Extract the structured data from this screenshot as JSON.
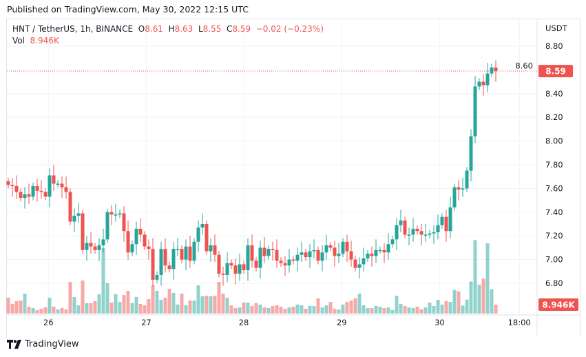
{
  "published": "Published on TradingView.com, May 30, 2022 12:15 UTC",
  "legend": {
    "symbol": "HNT / TetherUS, 1h, BINANCE",
    "open_label": "O",
    "open": "8.61",
    "high_label": "H",
    "high": "8.63",
    "low_label": "L",
    "low": "8.55",
    "close_label": "C",
    "close": "8.59",
    "change": "−0.02 (−0.23%)",
    "vol_label": "Vol",
    "vol": "8.946K"
  },
  "branding": "TradingView",
  "colors": {
    "up": "#26a69a",
    "down": "#ef5350",
    "grid": "#f0f3fa",
    "text": "#131722"
  },
  "chart_data": {
    "type": "candlestick",
    "currency_label": "USDT",
    "y_ticks": [
      "8.80",
      "8.60",
      "8.40",
      "8.20",
      "8.00",
      "7.80",
      "7.60",
      "7.40",
      "7.20",
      "7.00",
      "6.80"
    ],
    "y_tick_values": [
      8.8,
      8.6,
      8.4,
      8.2,
      8.0,
      7.8,
      7.6,
      7.4,
      7.2,
      7.0,
      6.8
    ],
    "x_ticks": [
      {
        "label": "26",
        "index": 9.7
      },
      {
        "label": "27",
        "index": 33.4
      },
      {
        "label": "28",
        "index": 57
      },
      {
        "label": "29",
        "index": 80.7
      },
      {
        "label": "30",
        "index": 104.4
      },
      {
        "label": "18:00",
        "index": 123.7
      }
    ],
    "last_price": "8.59",
    "last_price_value": 8.59,
    "last_volume": "8.946K",
    "first_open": 7.66,
    "close": [
      7.63,
      7.62,
      7.57,
      7.52,
      7.55,
      7.53,
      7.62,
      7.58,
      7.57,
      7.53,
      7.71,
      7.64,
      7.64,
      7.61,
      7.57,
      7.32,
      7.37,
      7.39,
      7.08,
      7.14,
      7.11,
      7.08,
      7.12,
      7.17,
      7.4,
      7.38,
      7.38,
      7.39,
      7.24,
      7.06,
      7.13,
      7.26,
      7.21,
      7.11,
      7.09,
      6.83,
      6.87,
      7.09,
      6.95,
      6.92,
      7.09,
      7.09,
      7.0,
      7.11,
      6.99,
      7.15,
      7.27,
      7.3,
      7.07,
      7.12,
      7.04,
      6.88,
      6.87,
      6.97,
      6.95,
      6.88,
      6.96,
      6.91,
      7.12,
      6.99,
      6.93,
      7.1,
      7.03,
      7.09,
      7.08,
      6.99,
      6.97,
      6.95,
      7.0,
      6.99,
      7.04,
      7.06,
      7.02,
      7.07,
      7.08,
      6.99,
      7.06,
      7.12,
      7.1,
      7.03,
      7.05,
      7.15,
      7.07,
      7.0,
      6.93,
      6.96,
      7.01,
      7.05,
      7.03,
      7.08,
      7.08,
      7.06,
      7.13,
      7.17,
      7.29,
      7.33,
      7.21,
      7.21,
      7.26,
      7.24,
      7.21,
      7.21,
      7.22,
      7.23,
      7.29,
      7.36,
      7.24,
      7.44,
      7.61,
      7.59,
      7.6,
      7.75,
      8.04,
      8.46,
      8.5,
      8.47,
      8.57,
      8.62,
      8.59
    ],
    "volume_k": [
      15.9,
      9.7,
      12.4,
      13.1,
      20,
      6.9,
      5.5,
      3.5,
      4.8,
      6.2,
      15.9,
      6.9,
      4.1,
      5.5,
      4.1,
      31.7,
      16.6,
      8.3,
      33.1,
      10.4,
      10.4,
      12.4,
      19.3,
      65.6,
      30.4,
      11,
      19.3,
      11.7,
      18.6,
      22.8,
      10.4,
      16.6,
      9.7,
      8.3,
      14.5,
      28.3,
      22.8,
      13.8,
      15.9,
      24.8,
      20.7,
      9,
      20,
      8.3,
      13.1,
      13.1,
      28.3,
      17.3,
      17.9,
      17.3,
      17.9,
      31.7,
      20,
      15.9,
      8.3,
      5.5,
      6.2,
      11,
      11,
      7.6,
      10.4,
      9,
      6.2,
      5.5,
      7.6,
      8.3,
      6.9,
      4.8,
      6.2,
      6.9,
      9,
      8.3,
      4.8,
      7.6,
      7.6,
      15.2,
      6.2,
      8.3,
      11.7,
      4.8,
      4.1,
      9,
      11.7,
      13.1,
      15.2,
      20,
      8.3,
      5.5,
      5.5,
      7.6,
      6.9,
      5.5,
      6.2,
      3.5,
      17.9,
      9.7,
      7.6,
      6.2,
      5.5,
      6.9,
      4.1,
      6.2,
      11,
      7.6,
      13.8,
      9,
      12.4,
      11.7,
      23.7,
      22.3,
      8,
      14,
      32,
      73.6,
      28.8,
      35,
      70.4,
      24.4,
      8.946
    ]
  }
}
